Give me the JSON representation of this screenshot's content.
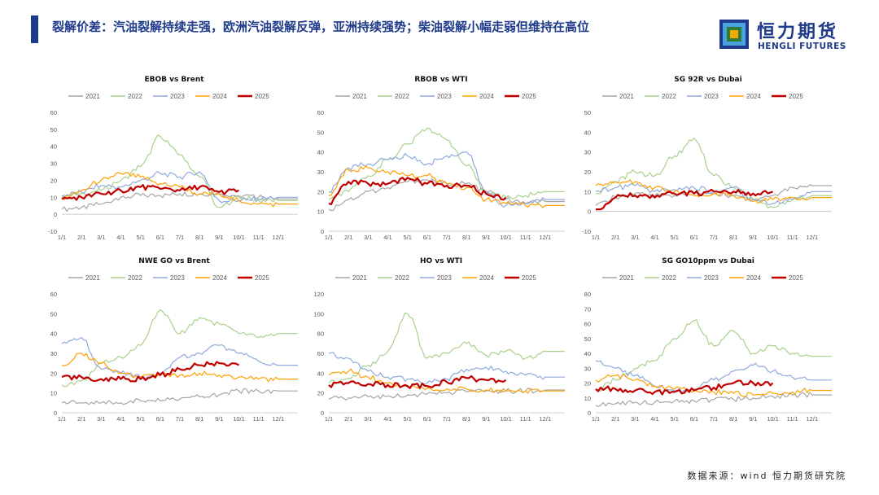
{
  "header": {
    "title": "裂解价差：汽油裂解持续走强，欧洲汽油裂解反弹，亚洲持续强势；柴油裂解小幅走弱但维持在高位",
    "logo_cn": "恒力期货",
    "logo_en": "HENGLI FUTURES"
  },
  "footer": {
    "source": "数据来源：wind 恒力期货研究院"
  },
  "colors": {
    "2021": "#a6a6a6",
    "2022": "#a9d18e",
    "2023": "#8faadc",
    "2024": "#ffa000",
    "2025": "#c00000",
    "brand": "#1f3a8a"
  },
  "chart_data": [
    {
      "type": "line",
      "title": "EBOB vs Brent",
      "x": [
        "1/1",
        "2/1",
        "3/1",
        "4/1",
        "5/1",
        "6/1",
        "7/1",
        "8/1",
        "9/1",
        "10/1",
        "11/1",
        "12/1"
      ],
      "ylim": [
        -10,
        60
      ],
      "yticks": [
        -10,
        0,
        10,
        20,
        30,
        40,
        50,
        60
      ],
      "series": [
        {
          "name": "2021",
          "values": [
            3,
            4,
            6,
            10,
            11,
            11,
            12,
            12,
            12,
            11,
            10,
            9
          ]
        },
        {
          "name": "2022",
          "values": [
            10,
            12,
            14,
            20,
            28,
            46,
            35,
            22,
            4,
            10,
            8,
            8
          ]
        },
        {
          "name": "2023",
          "values": [
            11,
            13,
            17,
            16,
            20,
            24,
            22,
            25,
            8,
            8,
            9,
            10
          ]
        },
        {
          "name": "2024",
          "values": [
            9,
            14,
            20,
            24,
            22,
            18,
            16,
            12,
            12,
            8,
            6,
            6
          ]
        },
        {
          "name": "2025",
          "values": [
            9,
            10,
            12,
            14,
            16,
            15,
            14,
            16,
            13,
            14,
            null,
            null
          ]
        }
      ]
    },
    {
      "type": "line",
      "title": "RBOB vs WTI",
      "x": [
        "1/1",
        "2/1",
        "3/1",
        "4/1",
        "5/1",
        "6/1",
        "7/1",
        "8/1",
        "9/1",
        "10/1",
        "11/1",
        "12/1"
      ],
      "ylim": [
        0,
        60
      ],
      "yticks": [
        0,
        10,
        20,
        30,
        40,
        50,
        60
      ],
      "series": [
        {
          "name": "2021",
          "values": [
            11,
            16,
            20,
            22,
            25,
            26,
            24,
            24,
            20,
            16,
            14,
            15
          ]
        },
        {
          "name": "2022",
          "values": [
            16,
            20,
            28,
            36,
            44,
            52,
            46,
            33,
            20,
            17,
            18,
            20
          ]
        },
        {
          "name": "2023",
          "values": [
            20,
            32,
            34,
            36,
            38,
            34,
            38,
            40,
            20,
            13,
            14,
            16
          ]
        },
        {
          "name": "2024",
          "values": [
            18,
            31,
            32,
            30,
            28,
            28,
            24,
            22,
            16,
            14,
            13,
            13
          ]
        },
        {
          "name": "2025",
          "values": [
            14,
            25,
            24,
            24,
            27,
            24,
            23,
            23,
            19,
            17,
            null,
            null
          ]
        }
      ]
    },
    {
      "type": "line",
      "title": "SG 92R vs Dubai",
      "x": [
        "1/1",
        "2/1",
        "3/1",
        "4/1",
        "5/1",
        "6/1",
        "7/1",
        "8/1",
        "9/1",
        "10/1",
        "11/1",
        "12/1"
      ],
      "ylim": [
        -10,
        50
      ],
      "yticks": [
        -10,
        0,
        10,
        20,
        30,
        40,
        50
      ],
      "series": [
        {
          "name": "2021",
          "values": [
            3,
            7,
            9,
            8,
            8,
            9,
            9,
            8,
            6,
            8,
            12,
            13
          ]
        },
        {
          "name": "2022",
          "values": [
            9,
            15,
            20,
            18,
            28,
            37,
            18,
            12,
            6,
            2,
            6,
            8
          ]
        },
        {
          "name": "2023",
          "values": [
            10,
            12,
            13,
            10,
            11,
            12,
            10,
            12,
            6,
            4,
            6,
            10
          ]
        },
        {
          "name": "2024",
          "values": [
            13,
            15,
            15,
            12,
            10,
            8,
            9,
            8,
            5,
            6,
            7,
            7
          ]
        },
        {
          "name": "2025",
          "values": [
            1,
            7,
            8,
            7,
            9,
            9,
            10,
            10,
            9,
            10,
            null,
            null
          ]
        }
      ]
    },
    {
      "type": "line",
      "title": "NWE GO vs Brent",
      "x": [
        "1/1",
        "2/1",
        "3/1",
        "4/1",
        "5/1",
        "6/1",
        "7/1",
        "8/1",
        "9/1",
        "10/1",
        "11/1",
        "12/1"
      ],
      "ylim": [
        0,
        60
      ],
      "yticks": [
        0,
        10,
        20,
        30,
        40,
        50,
        60
      ],
      "series": [
        {
          "name": "2021",
          "values": [
            5,
            5,
            5,
            5,
            6,
            6,
            7,
            8,
            9,
            11,
            11,
            11
          ]
        },
        {
          "name": "2022",
          "values": [
            14,
            16,
            25,
            28,
            34,
            52,
            40,
            48,
            45,
            40,
            38,
            40
          ]
        },
        {
          "name": "2023",
          "values": [
            35,
            38,
            22,
            20,
            18,
            20,
            28,
            30,
            34,
            30,
            26,
            24
          ]
        },
        {
          "name": "2024",
          "values": [
            24,
            30,
            25,
            20,
            18,
            19,
            19,
            20,
            19,
            18,
            17,
            17
          ]
        },
        {
          "name": "2025",
          "values": [
            18,
            18,
            17,
            17,
            17,
            19,
            22,
            24,
            25,
            24,
            null,
            null
          ]
        }
      ]
    },
    {
      "type": "line",
      "title": "HO vs WTI",
      "x": [
        "1/1",
        "2/1",
        "3/1",
        "4/1",
        "5/1",
        "6/1",
        "7/1",
        "8/1",
        "9/1",
        "10/1",
        "11/1",
        "12/1"
      ],
      "ylim": [
        0,
        120
      ],
      "yticks": [
        0,
        20,
        40,
        60,
        80,
        100,
        120
      ],
      "series": [
        {
          "name": "2021",
          "values": [
            14,
            15,
            16,
            17,
            18,
            19,
            20,
            21,
            22,
            22,
            22,
            23
          ]
        },
        {
          "name": "2022",
          "values": [
            30,
            35,
            48,
            62,
            100,
            55,
            60,
            70,
            58,
            62,
            55,
            62
          ]
        },
        {
          "name": "2023",
          "values": [
            60,
            55,
            42,
            36,
            34,
            30,
            34,
            44,
            46,
            42,
            38,
            36
          ]
        },
        {
          "name": "2024",
          "values": [
            38,
            42,
            36,
            30,
            26,
            25,
            24,
            24,
            23,
            22,
            22,
            22
          ]
        },
        {
          "name": "2025",
          "values": [
            28,
            30,
            29,
            28,
            27,
            27,
            31,
            35,
            33,
            33,
            null,
            null
          ]
        }
      ]
    },
    {
      "type": "line",
      "title": "SG GO10ppm vs Dubai",
      "x": [
        "1/1",
        "2/1",
        "3/1",
        "4/1",
        "5/1",
        "6/1",
        "7/1",
        "8/1",
        "9/1",
        "10/1",
        "11/1",
        "12/1"
      ],
      "ylim": [
        0,
        80
      ],
      "yticks": [
        0,
        10,
        20,
        30,
        40,
        50,
        60,
        70,
        80
      ],
      "series": [
        {
          "name": "2021",
          "values": [
            5,
            6,
            7,
            7,
            8,
            8,
            9,
            9,
            10,
            11,
            12,
            12
          ]
        },
        {
          "name": "2022",
          "values": [
            15,
            22,
            30,
            35,
            50,
            62,
            45,
            55,
            40,
            45,
            40,
            38
          ]
        },
        {
          "name": "2023",
          "values": [
            35,
            30,
            25,
            18,
            15,
            16,
            22,
            28,
            32,
            28,
            24,
            22
          ]
        },
        {
          "name": "2024",
          "values": [
            22,
            25,
            22,
            18,
            16,
            15,
            14,
            13,
            12,
            13,
            14,
            15
          ]
        },
        {
          "name": "2025",
          "values": [
            16,
            16,
            15,
            14,
            14,
            15,
            17,
            20,
            20,
            20,
            null,
            null
          ]
        }
      ]
    }
  ]
}
